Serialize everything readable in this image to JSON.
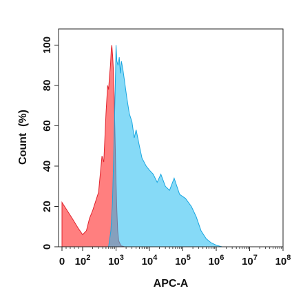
{
  "chart_data": {
    "type": "area",
    "title": "",
    "xlabel": "APC-A",
    "ylabel": "Count  (%)",
    "xscale": "log",
    "xlim": [
      0,
      100000000
    ],
    "ylim": [
      0,
      108
    ],
    "x_ticks": [
      {
        "value": 0,
        "label": "0"
      },
      {
        "value": 100,
        "base": "10",
        "exp": "2"
      },
      {
        "value": 1000,
        "base": "10",
        "exp": "3"
      },
      {
        "value": 10000,
        "base": "10",
        "exp": "4"
      },
      {
        "value": 100000,
        "base": "10",
        "exp": "5"
      },
      {
        "value": 1000000,
        "base": "10",
        "exp": "6"
      },
      {
        "value": 10000000,
        "base": "10",
        "exp": "7"
      },
      {
        "value": 100000000,
        "base": "10",
        "exp": "8"
      }
    ],
    "y_ticks": [
      "0",
      "20",
      "40",
      "60",
      "80",
      "100"
    ],
    "grid": false,
    "legend": "none",
    "series": [
      {
        "color": "#ff3b3b",
        "stroke": "#e0242e",
        "opacity": 0.65,
        "points": [
          [
            0,
            22
          ],
          [
            50,
            14
          ],
          [
            80,
            9
          ],
          [
            100,
            6
          ],
          [
            130,
            8
          ],
          [
            160,
            14
          ],
          [
            200,
            18
          ],
          [
            250,
            23
          ],
          [
            300,
            27
          ],
          [
            380,
            45
          ],
          [
            430,
            42
          ],
          [
            500,
            66
          ],
          [
            560,
            80
          ],
          [
            600,
            78
          ],
          [
            640,
            85
          ],
          [
            680,
            90
          ],
          [
            720,
            98
          ],
          [
            750,
            100
          ],
          [
            790,
            95
          ],
          [
            830,
            88
          ],
          [
            880,
            74
          ],
          [
            940,
            52
          ],
          [
            1000,
            32
          ],
          [
            1060,
            18
          ],
          [
            1120,
            8
          ],
          [
            1200,
            3
          ],
          [
            1400,
            0.5
          ],
          [
            1800,
            0
          ]
        ]
      },
      {
        "color": "#22bbf0",
        "stroke": "#1aa6e0",
        "opacity": 0.55,
        "points": [
          [
            600,
            0
          ],
          [
            700,
            8
          ],
          [
            780,
            22
          ],
          [
            850,
            45
          ],
          [
            920,
            70
          ],
          [
            970,
            88
          ],
          [
            1000,
            100
          ],
          [
            1060,
            92
          ],
          [
            1150,
            90
          ],
          [
            1250,
            94
          ],
          [
            1350,
            86
          ],
          [
            1450,
            92
          ],
          [
            1600,
            88
          ],
          [
            1800,
            82
          ],
          [
            2100,
            74
          ],
          [
            2500,
            66
          ],
          [
            3000,
            62
          ],
          [
            3500,
            54
          ],
          [
            4000,
            58
          ],
          [
            5000,
            50
          ],
          [
            6000,
            44
          ],
          [
            8000,
            40
          ],
          [
            10000,
            38
          ],
          [
            13000,
            36
          ],
          [
            17000,
            32
          ],
          [
            22000,
            36
          ],
          [
            30000,
            30
          ],
          [
            40000,
            28
          ],
          [
            55000,
            34
          ],
          [
            80000,
            26
          ],
          [
            120000,
            24
          ],
          [
            180000,
            20
          ],
          [
            250000,
            15
          ],
          [
            350000,
            8
          ],
          [
            500000,
            4
          ],
          [
            700000,
            2
          ],
          [
            1000000,
            0.8
          ],
          [
            1500000,
            0
          ]
        ]
      }
    ]
  }
}
